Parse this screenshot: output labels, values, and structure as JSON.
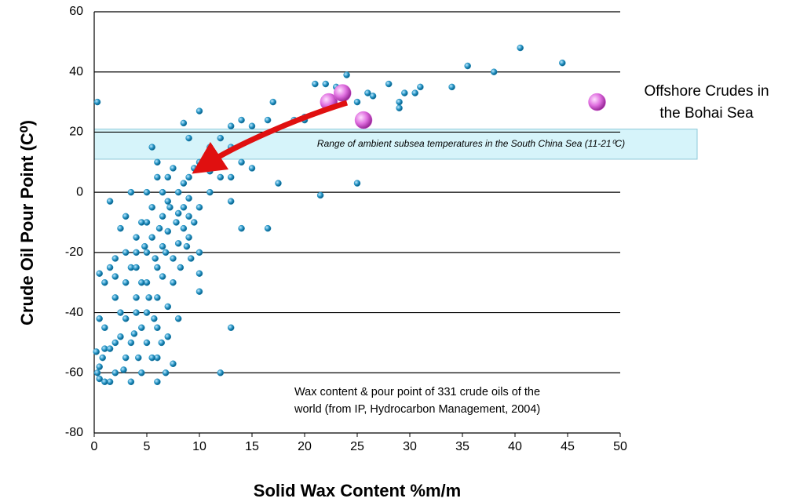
{
  "chart_data": {
    "type": "scatter",
    "xlabel": "Solid Wax Content %m/m",
    "ylabel": "Crude Oil Pour Point (C⁰)",
    "xlim": [
      0,
      50
    ],
    "ylim": [
      -80,
      60
    ],
    "xticks": [
      0,
      5,
      10,
      15,
      20,
      25,
      30,
      35,
      40,
      45,
      50
    ],
    "yticks": [
      -80,
      -60,
      -40,
      -20,
      0,
      20,
      40,
      60
    ],
    "grid": true,
    "band": {
      "ymin": 11,
      "ymax": 21,
      "label": "Range of ambient subsea temperatures in the South China Sea (11-21⁰C)"
    },
    "annotations": [
      "Offshore Crudes in",
      "the Bohai Sea",
      "Wax content & pour point of 331 crude oils of the",
      "world (from IP, Hydrocarbon Management, 2004)"
    ],
    "series": [
      {
        "color": "#1f8fc0",
        "x": [
          0.3,
          1.5,
          8.5,
          10,
          9,
          11,
          12,
          13,
          14,
          15,
          16.5,
          17,
          17.5,
          20,
          21,
          22,
          23,
          24,
          25,
          25,
          21.5,
          26,
          26.5,
          28,
          29,
          29,
          29.5,
          30.5,
          31,
          34,
          35.5,
          38,
          40.5,
          44.5,
          14,
          16.5,
          13,
          12,
          13,
          10,
          7.5,
          14,
          15,
          13,
          19,
          20,
          10,
          11,
          12,
          13,
          11,
          10,
          10,
          10,
          9,
          9.5,
          0.2,
          0.3,
          0.5,
          0.8,
          0.5,
          1,
          1,
          0.5,
          1.5,
          2,
          2,
          2.5,
          1.5,
          2,
          2.5,
          3,
          3,
          3.5,
          2.5,
          3.5,
          4,
          4,
          4.5,
          3.5,
          4.5,
          5,
          5,
          5,
          5,
          5,
          5.5,
          5.5,
          6,
          6,
          6,
          6,
          6,
          5.5,
          6,
          6,
          6.5,
          6.5,
          6.5,
          6.5,
          7,
          7,
          7,
          7,
          7,
          7.5,
          7.5,
          8,
          8,
          8,
          8,
          8.5,
          8.5,
          8.5,
          9,
          9,
          9,
          7.5,
          6.8,
          3,
          3.5,
          4,
          4,
          4,
          4.5,
          4.5,
          5,
          5.5,
          1,
          1.5,
          2,
          2,
          3,
          3,
          0.5,
          1,
          7.8,
          8.2,
          6.2,
          5.8,
          6.8,
          7.2,
          8.8,
          9.2,
          4.8,
          5.2,
          5.7,
          6.4,
          4.2,
          2.8,
          3.8,
          9.5
        ],
        "values": [
          30,
          -3,
          23,
          27,
          18,
          15,
          18,
          22,
          24,
          22,
          24,
          30,
          3,
          24,
          36,
          36,
          35,
          39,
          30,
          3,
          -1,
          33,
          32,
          36,
          28,
          30,
          33,
          33,
          35,
          35,
          42,
          40,
          48,
          43,
          -12,
          -12,
          -3,
          -60,
          -45,
          -33,
          -57,
          10,
          8,
          15,
          24,
          25,
          10,
          7,
          5,
          5,
          0,
          -5,
          -20,
          -27,
          -15,
          -10,
          -53,
          -60,
          -62,
          -55,
          -42,
          -45,
          -30,
          -27,
          -63,
          -60,
          -50,
          -48,
          -25,
          -22,
          -40,
          -42,
          -30,
          -25,
          -12,
          0,
          -15,
          -35,
          -45,
          -63,
          -60,
          -50,
          -40,
          -30,
          -20,
          -10,
          -5,
          -15,
          -25,
          -35,
          -45,
          -55,
          -63,
          15,
          5,
          10,
          0,
          -8,
          -18,
          -28,
          -38,
          -48,
          5,
          -3,
          -13,
          -22,
          8,
          0,
          -7,
          -17,
          -42,
          -5,
          -12,
          3,
          5,
          -2,
          -8,
          -30,
          -60,
          -55,
          -50,
          -40,
          -25,
          -20,
          -10,
          -30,
          0,
          -55,
          -52,
          -52,
          -35,
          -28,
          -8,
          -20,
          -58,
          -63,
          -10,
          -25,
          -12,
          -22,
          -20,
          -5,
          -18,
          -22,
          -18,
          -35,
          -42,
          -50,
          -55,
          -59,
          -47,
          8
        ]
      },
      {
        "color": "#e070e0",
        "x": [
          22.3,
          23.6,
          25.6,
          47.8
        ],
        "values": [
          30,
          33,
          24,
          30
        ]
      }
    ]
  }
}
